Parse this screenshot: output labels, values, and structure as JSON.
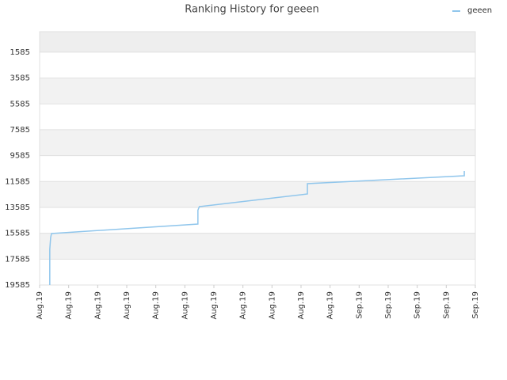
{
  "chart_data": {
    "type": "line",
    "title": "Ranking History for geeen",
    "x": [
      0.35,
      0.35,
      0.38,
      0.41,
      5.45,
      5.45,
      5.5,
      9.22,
      9.22,
      14.62,
      14.62
    ],
    "series": [
      {
        "name": "geeen",
        "color": "#90c6ec",
        "values": [
          19585,
          16831,
          15913,
          15607,
          14872,
          13800,
          13526,
          12547,
          11751,
          11139,
          10772
        ]
      }
    ],
    "ylim": [
      19585,
      0
    ],
    "yticks": [
      1585,
      3585,
      5585,
      7585,
      9585,
      11585,
      13585,
      15585,
      17585,
      19585
    ],
    "xlim": [
      0,
      15
    ],
    "xticks": [
      {
        "value": 0,
        "label": "Aug.19"
      },
      {
        "value": 1,
        "label": "Aug.19"
      },
      {
        "value": 2,
        "label": "Aug.19"
      },
      {
        "value": 3,
        "label": "Aug.19"
      },
      {
        "value": 4,
        "label": "Aug.19"
      },
      {
        "value": 5,
        "label": "Aug.19"
      },
      {
        "value": 6,
        "label": "Aug.19"
      },
      {
        "value": 7,
        "label": "Aug.19"
      },
      {
        "value": 8,
        "label": "Aug.19"
      },
      {
        "value": 9,
        "label": "Aug.19"
      },
      {
        "value": 10,
        "label": "Aug.19"
      },
      {
        "value": 11,
        "label": "Sep.19"
      },
      {
        "value": 12,
        "label": "Sep.19"
      },
      {
        "value": 13,
        "label": "Sep.19"
      },
      {
        "value": 14,
        "label": "Sep.19"
      },
      {
        "value": 15,
        "label": "Sep.19"
      }
    ],
    "grid": true,
    "legend": "top-right"
  }
}
